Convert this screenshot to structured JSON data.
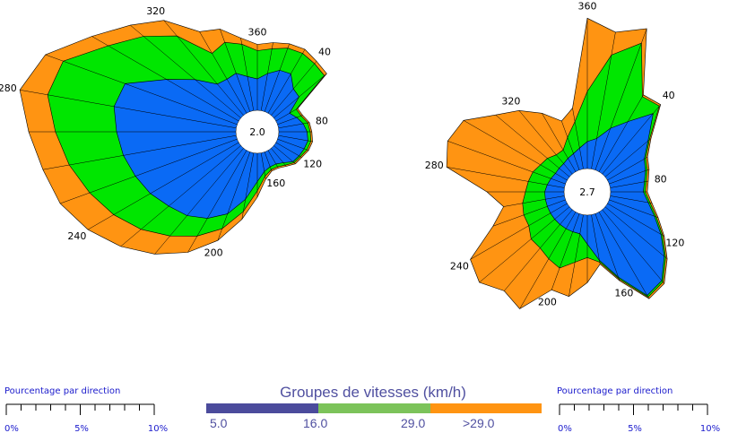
{
  "colors": {
    "low": "#0a6af5",
    "mid": "#00e600",
    "high": "#ff9412",
    "band_1": "#4b4b9c",
    "band_2": "#7cc35a",
    "band_3": "#7cc35a",
    "band_4": "#ff9412",
    "text_blue": "#1a1acc",
    "legend_text": "#5050a0"
  },
  "chart_data": [
    {
      "type": "polar-stacked-area",
      "center_label": "2.0",
      "direction_labels": [
        "360",
        "40",
        "80",
        "120",
        "160",
        "200",
        "240",
        "280",
        "320"
      ],
      "directions_deg": [
        0,
        10,
        20,
        30,
        40,
        50,
        60,
        70,
        80,
        90,
        100,
        110,
        120,
        130,
        140,
        150,
        160,
        170,
        180,
        190,
        200,
        210,
        220,
        230,
        240,
        250,
        260,
        270,
        280,
        290,
        300,
        310,
        320,
        330,
        340,
        350
      ],
      "series": [
        {
          "name": "5.0-16.0",
          "cumulative_percent": [
            2.0,
            2.4,
            2.8,
            2.9,
            2.2,
            2.1,
            1.0,
            1.3,
            1.6,
            1.8,
            1.9,
            1.8,
            1.7,
            1.6,
            1.2,
            1.0,
            1.0,
            1.2,
            1.8,
            3.0,
            4.2,
            5.0,
            5.6,
            6.0,
            6.5,
            6.9,
            7.3,
            7.6,
            7.9,
            7.6,
            5.3,
            3.8,
            2.6,
            2.5,
            2.6,
            2.2
          ]
        },
        {
          "name": "16.0-29.0",
          "cumulative_percent": [
            3.8,
            4.0,
            4.3,
            4.4,
            4.3,
            4.2,
            1.5,
            1.6,
            1.9,
            2.0,
            2.1,
            2.0,
            1.8,
            1.7,
            1.4,
            1.2,
            1.2,
            1.5,
            2.4,
            3.8,
            5.2,
            6.3,
            7.3,
            8.3,
            9.2,
            10.0,
            10.8,
            11.5,
            12.2,
            11.8,
            9.6,
            8.1,
            6.6,
            4.4,
            4.7,
            4.3
          ]
        },
        {
          "name": ">29.0",
          "cumulative_percent": [
            4.2,
            4.4,
            4.6,
            4.7,
            4.5,
            4.4,
            1.6,
            1.7,
            2.0,
            2.1,
            2.2,
            2.1,
            1.9,
            1.8,
            1.5,
            1.3,
            1.3,
            1.7,
            2.8,
            4.3,
            6.0,
            7.5,
            8.8,
            10.0,
            11.1,
            12.0,
            12.5,
            13.2,
            14.0,
            13.0,
            10.8,
            9.2,
            7.9,
            6.0,
            5.6,
            4.7
          ]
        }
      ]
    },
    {
      "type": "polar-stacked-area",
      "center_label": "2.7",
      "direction_labels": [
        "360",
        "40",
        "80",
        "120",
        "160",
        "200",
        "240",
        "280",
        "320"
      ],
      "directions_deg": [
        0,
        10,
        20,
        30,
        40,
        50,
        60,
        70,
        80,
        90,
        100,
        110,
        120,
        130,
        140,
        150,
        160,
        170,
        180,
        190,
        200,
        210,
        220,
        230,
        240,
        250,
        260,
        270,
        280,
        290,
        300,
        310,
        320,
        330,
        340,
        350
      ],
      "series": [
        {
          "name": "5.0-16.0",
          "cumulative_percent": [
            1.4,
            1.6,
            2.3,
            3.0,
            4.1,
            2.9,
            2.2,
            2.0,
            1.8,
            1.7,
            2.0,
            2.5,
            3.2,
            4.0,
            4.8,
            5.0,
            3.5,
            2.4,
            1.5,
            1.0,
            1.0,
            1.0,
            1.0,
            1.0,
            1.0,
            1.0,
            1.0,
            1.0,
            0.9,
            0.8,
            0.7,
            0.7,
            0.7,
            0.8,
            0.9,
            1.1
          ]
        },
        {
          "name": "16.0-29.0",
          "cumulative_percent": [
            4.0,
            6.0,
            7.0,
            4.5,
            4.6,
            3.0,
            2.3,
            2.1,
            1.9,
            1.8,
            2.1,
            2.6,
            3.3,
            4.1,
            4.9,
            5.1,
            3.6,
            2.5,
            2.2,
            2.5,
            3.0,
            2.8,
            2.6,
            2.6,
            2.3,
            2.3,
            2.2,
            2.0,
            1.9,
            1.8,
            1.6,
            1.5,
            1.3,
            1.3,
            1.8,
            2.5
          ]
        },
        {
          "name": ">29.0",
          "cumulative_percent": [
            7.8,
            7.2,
            7.8,
            4.6,
            4.7,
            3.1,
            2.4,
            2.2,
            2.0,
            1.9,
            2.2,
            2.7,
            3.4,
            4.2,
            5.0,
            5.2,
            3.7,
            2.6,
            3.5,
            4.3,
            4.2,
            5.8,
            5.5,
            6.1,
            5.8,
            4.0,
            3.2,
            4.0,
            6.2,
            6.5,
            6.2,
            5.0,
            4.3,
            3.5,
            2.7,
            3.2
          ]
        }
      ]
    }
  ],
  "legend": {
    "title": "Groupes de vitesses (km/h)",
    "labels": [
      "5.0",
      "16.0",
      "29.0",
      ">29.0"
    ]
  },
  "scale_left": {
    "title": "Pourcentage par direction",
    "ticks": [
      "0%",
      "5%",
      "10%"
    ]
  },
  "scale_right": {
    "title": "Pourcentage par direction",
    "ticks": [
      "0%",
      "5%",
      "10%"
    ]
  }
}
